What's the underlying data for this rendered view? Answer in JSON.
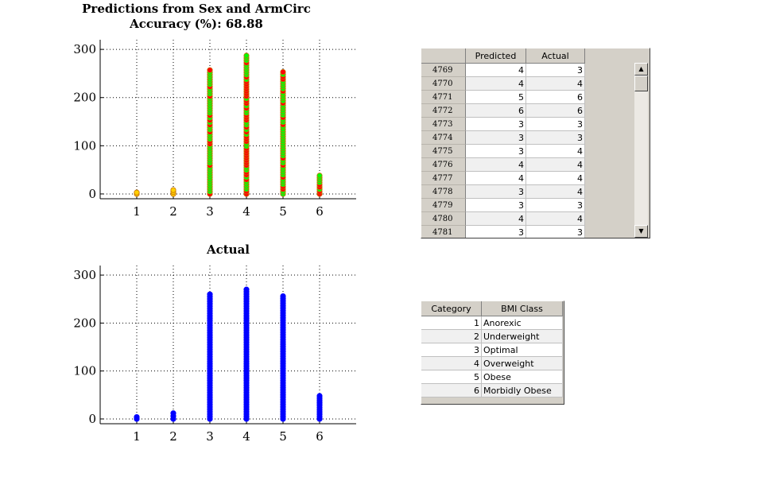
{
  "chart_data": [
    {
      "type": "scatter",
      "title": "Predictions from Sex and ArmCirc",
      "subtitle": "Accuracy (%): 68.88",
      "xlabel": "",
      "ylabel": "",
      "xlim": [
        0,
        7
      ],
      "ylim": [
        -10,
        320
      ],
      "xticks": [
        "1",
        "2",
        "3",
        "4",
        "5",
        "6"
      ],
      "yticks": [
        "0",
        "100",
        "200",
        "300"
      ],
      "grid": true,
      "colors": {
        "correct": "#00ff00",
        "incorrect": "#ff0000",
        "edge": "#c87000"
      },
      "series": [
        {
          "x": 1,
          "y_min": 0,
          "y_max": 3
        },
        {
          "x": 2,
          "y_min": 0,
          "y_max": 8
        },
        {
          "x": 3,
          "y_min": 0,
          "y_max": 257
        },
        {
          "x": 4,
          "y_min": 0,
          "y_max": 287
        },
        {
          "x": 5,
          "y_min": 0,
          "y_max": 253
        },
        {
          "x": 6,
          "y_min": 0,
          "y_max": 38
        }
      ]
    },
    {
      "type": "scatter",
      "title": "Actual",
      "xlabel": "",
      "ylabel": "",
      "xlim": [
        0,
        7
      ],
      "ylim": [
        -10,
        320
      ],
      "xticks": [
        "1",
        "2",
        "3",
        "4",
        "5",
        "6"
      ],
      "yticks": [
        "0",
        "100",
        "200",
        "300"
      ],
      "grid": true,
      "color": "#0000ff",
      "series": [
        {
          "x": 1,
          "y_min": 0,
          "y_max": 4
        },
        {
          "x": 2,
          "y_min": 0,
          "y_max": 12
        },
        {
          "x": 3,
          "y_min": 0,
          "y_max": 260
        },
        {
          "x": 4,
          "y_min": 0,
          "y_max": 270
        },
        {
          "x": 5,
          "y_min": 0,
          "y_max": 256
        },
        {
          "x": 6,
          "y_min": 0,
          "y_max": 48
        }
      ]
    }
  ],
  "predictions_table": {
    "columns": [
      "Predicted",
      "Actual"
    ],
    "rows": [
      {
        "id": "4769",
        "predicted": "4",
        "actual": "3"
      },
      {
        "id": "4770",
        "predicted": "4",
        "actual": "4"
      },
      {
        "id": "4771",
        "predicted": "5",
        "actual": "6"
      },
      {
        "id": "4772",
        "predicted": "6",
        "actual": "6"
      },
      {
        "id": "4773",
        "predicted": "3",
        "actual": "3"
      },
      {
        "id": "4774",
        "predicted": "3",
        "actual": "3"
      },
      {
        "id": "4775",
        "predicted": "3",
        "actual": "4"
      },
      {
        "id": "4776",
        "predicted": "4",
        "actual": "4"
      },
      {
        "id": "4777",
        "predicted": "4",
        "actual": "4"
      },
      {
        "id": "4778",
        "predicted": "3",
        "actual": "4"
      },
      {
        "id": "4779",
        "predicted": "3",
        "actual": "3"
      },
      {
        "id": "4780",
        "predicted": "4",
        "actual": "4"
      },
      {
        "id": "4781",
        "predicted": "3",
        "actual": "3"
      }
    ]
  },
  "category_table": {
    "columns": [
      "Category",
      "BMI Class"
    ],
    "rows": [
      {
        "category": "1",
        "bmi_class": "Anorexic"
      },
      {
        "category": "2",
        "bmi_class": "Underweight"
      },
      {
        "category": "3",
        "bmi_class": "Optimal"
      },
      {
        "category": "4",
        "bmi_class": "Overweight"
      },
      {
        "category": "5",
        "bmi_class": "Obese"
      },
      {
        "category": "6",
        "bmi_class": "Morbidly Obese"
      }
    ]
  },
  "scrollbar": {
    "up_glyph": "▲",
    "down_glyph": "▼"
  }
}
